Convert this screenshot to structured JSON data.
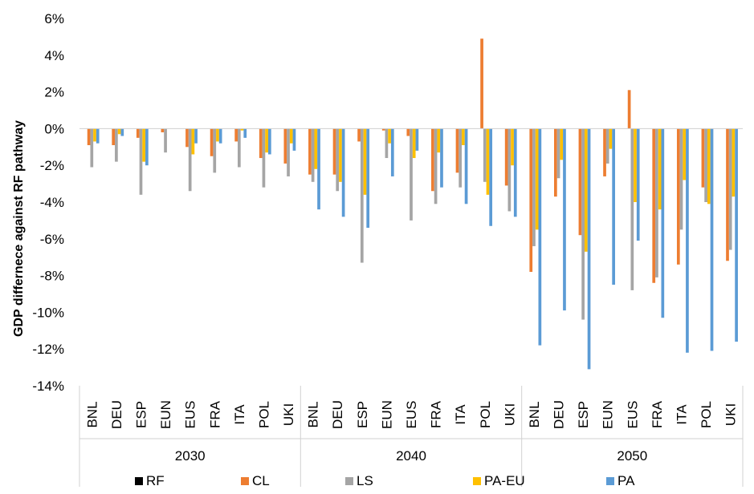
{
  "chart_data": {
    "type": "bar",
    "ylabel": "GDP differnece against RF pathway",
    "ylim": [
      -14,
      6
    ],
    "y_ticks": [
      "6%",
      "4%",
      "2%",
      "0%",
      "-2%",
      "-4%",
      "-6%",
      "-8%",
      "-10%",
      "-12%",
      "-14%"
    ],
    "y_tick_values": [
      6,
      4,
      2,
      0,
      -2,
      -4,
      -6,
      -8,
      -10,
      -12,
      -14
    ],
    "grid": false,
    "legend_position": "bottom",
    "groups": [
      "2030",
      "2040",
      "2050"
    ],
    "categories": [
      "BNL",
      "DEU",
      "ESP",
      "EUN",
      "EUS",
      "FRA",
      "ITA",
      "POL",
      "UKI"
    ],
    "series": [
      {
        "name": "RF",
        "color": "#000000",
        "values": [
          [
            0,
            0,
            0,
            0,
            0,
            0,
            0,
            0,
            0
          ],
          [
            0,
            0,
            0,
            0,
            0,
            0,
            0,
            0,
            0
          ],
          [
            0,
            0,
            0,
            0,
            0,
            0,
            0,
            0,
            0
          ]
        ]
      },
      {
        "name": "CL",
        "color": "#ED7D31",
        "values": [
          [
            -0.9,
            -0.9,
            -0.5,
            -0.2,
            -1.0,
            -1.5,
            -0.7,
            -1.6,
            -1.9
          ],
          [
            -2.5,
            -2.5,
            -0.7,
            -0.1,
            -0.4,
            -3.4,
            -2.4,
            4.9,
            -3.1
          ],
          [
            -7.8,
            -3.7,
            -5.8,
            -2.6,
            2.1,
            -8.4,
            -7.4,
            -3.2,
            -7.2
          ]
        ]
      },
      {
        "name": "LS",
        "color": "#A5A5A5",
        "values": [
          [
            -2.1,
            -1.8,
            -3.6,
            -1.3,
            -3.4,
            -2.4,
            -2.1,
            -3.2,
            -2.6
          ],
          [
            -2.9,
            -3.4,
            -7.3,
            -1.6,
            -5.0,
            -4.1,
            -3.2,
            -2.9,
            -4.5
          ],
          [
            -6.4,
            -2.7,
            -10.4,
            -1.9,
            -8.8,
            -8.1,
            -5.5,
            -4.0,
            -6.6
          ]
        ]
      },
      {
        "name": "PA-EU",
        "color": "#FFC000",
        "values": [
          [
            -0.7,
            -0.3,
            -1.8,
            0,
            -1.4,
            -0.7,
            -0.1,
            -1.3,
            -0.8
          ],
          [
            -2.2,
            -2.9,
            -3.6,
            -0.8,
            -1.6,
            -1.3,
            -0.9,
            -3.6,
            -2.0
          ],
          [
            -5.5,
            -1.7,
            -6.7,
            -1.1,
            -4.0,
            -4.4,
            -2.8,
            -4.1,
            -3.7
          ]
        ]
      },
      {
        "name": "PA",
        "color": "#5B9BD5",
        "values": [
          [
            -0.8,
            -0.4,
            -2.0,
            0,
            -0.8,
            -0.8,
            -0.5,
            -1.4,
            -1.2
          ],
          [
            -4.4,
            -4.8,
            -5.4,
            -2.6,
            -1.2,
            -3.2,
            -4.1,
            -5.3,
            -4.8
          ],
          [
            -11.8,
            -9.9,
            -13.1,
            -8.5,
            -6.1,
            -10.3,
            -12.2,
            -12.1,
            -11.6
          ]
        ]
      }
    ]
  }
}
